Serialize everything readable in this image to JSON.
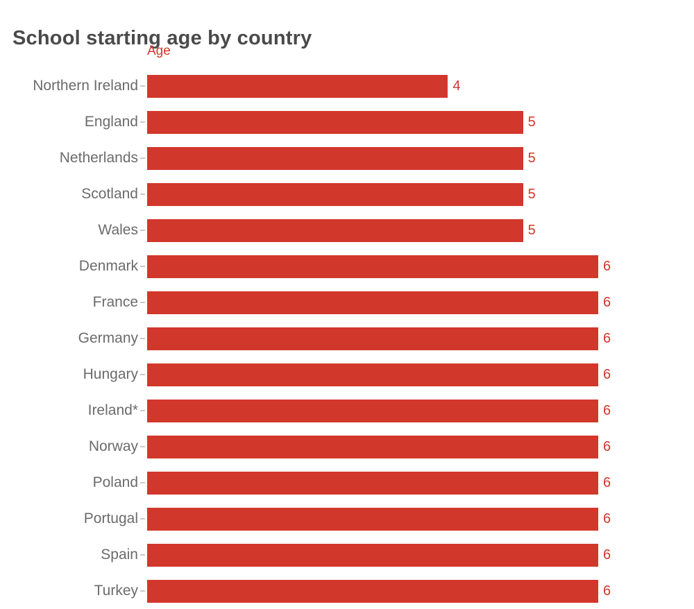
{
  "page": {
    "title": "School starting age by country"
  },
  "chart_data": {
    "type": "bar",
    "orientation": "horizontal",
    "title": "School starting age by country",
    "value_axis_label": "Age",
    "categories": [
      "Northern Ireland",
      "England",
      "Netherlands",
      "Scotland",
      "Wales",
      "Denmark",
      "France",
      "Germany",
      "Hungary",
      "Ireland*",
      "Norway",
      "Poland",
      "Portugal",
      "Spain",
      "Turkey"
    ],
    "values": [
      4,
      5,
      5,
      5,
      5,
      6,
      6,
      6,
      6,
      6,
      6,
      6,
      6,
      6,
      6
    ],
    "xlim": [
      0,
      6
    ],
    "value_labels_shown": true,
    "legend": "none",
    "grid": false
  },
  "colors": {
    "accent": "#d2372b",
    "title": "#4a4a4a",
    "category_label": "#6b6b6b",
    "tick": "#c9c9c9",
    "background": "#ffffff"
  }
}
